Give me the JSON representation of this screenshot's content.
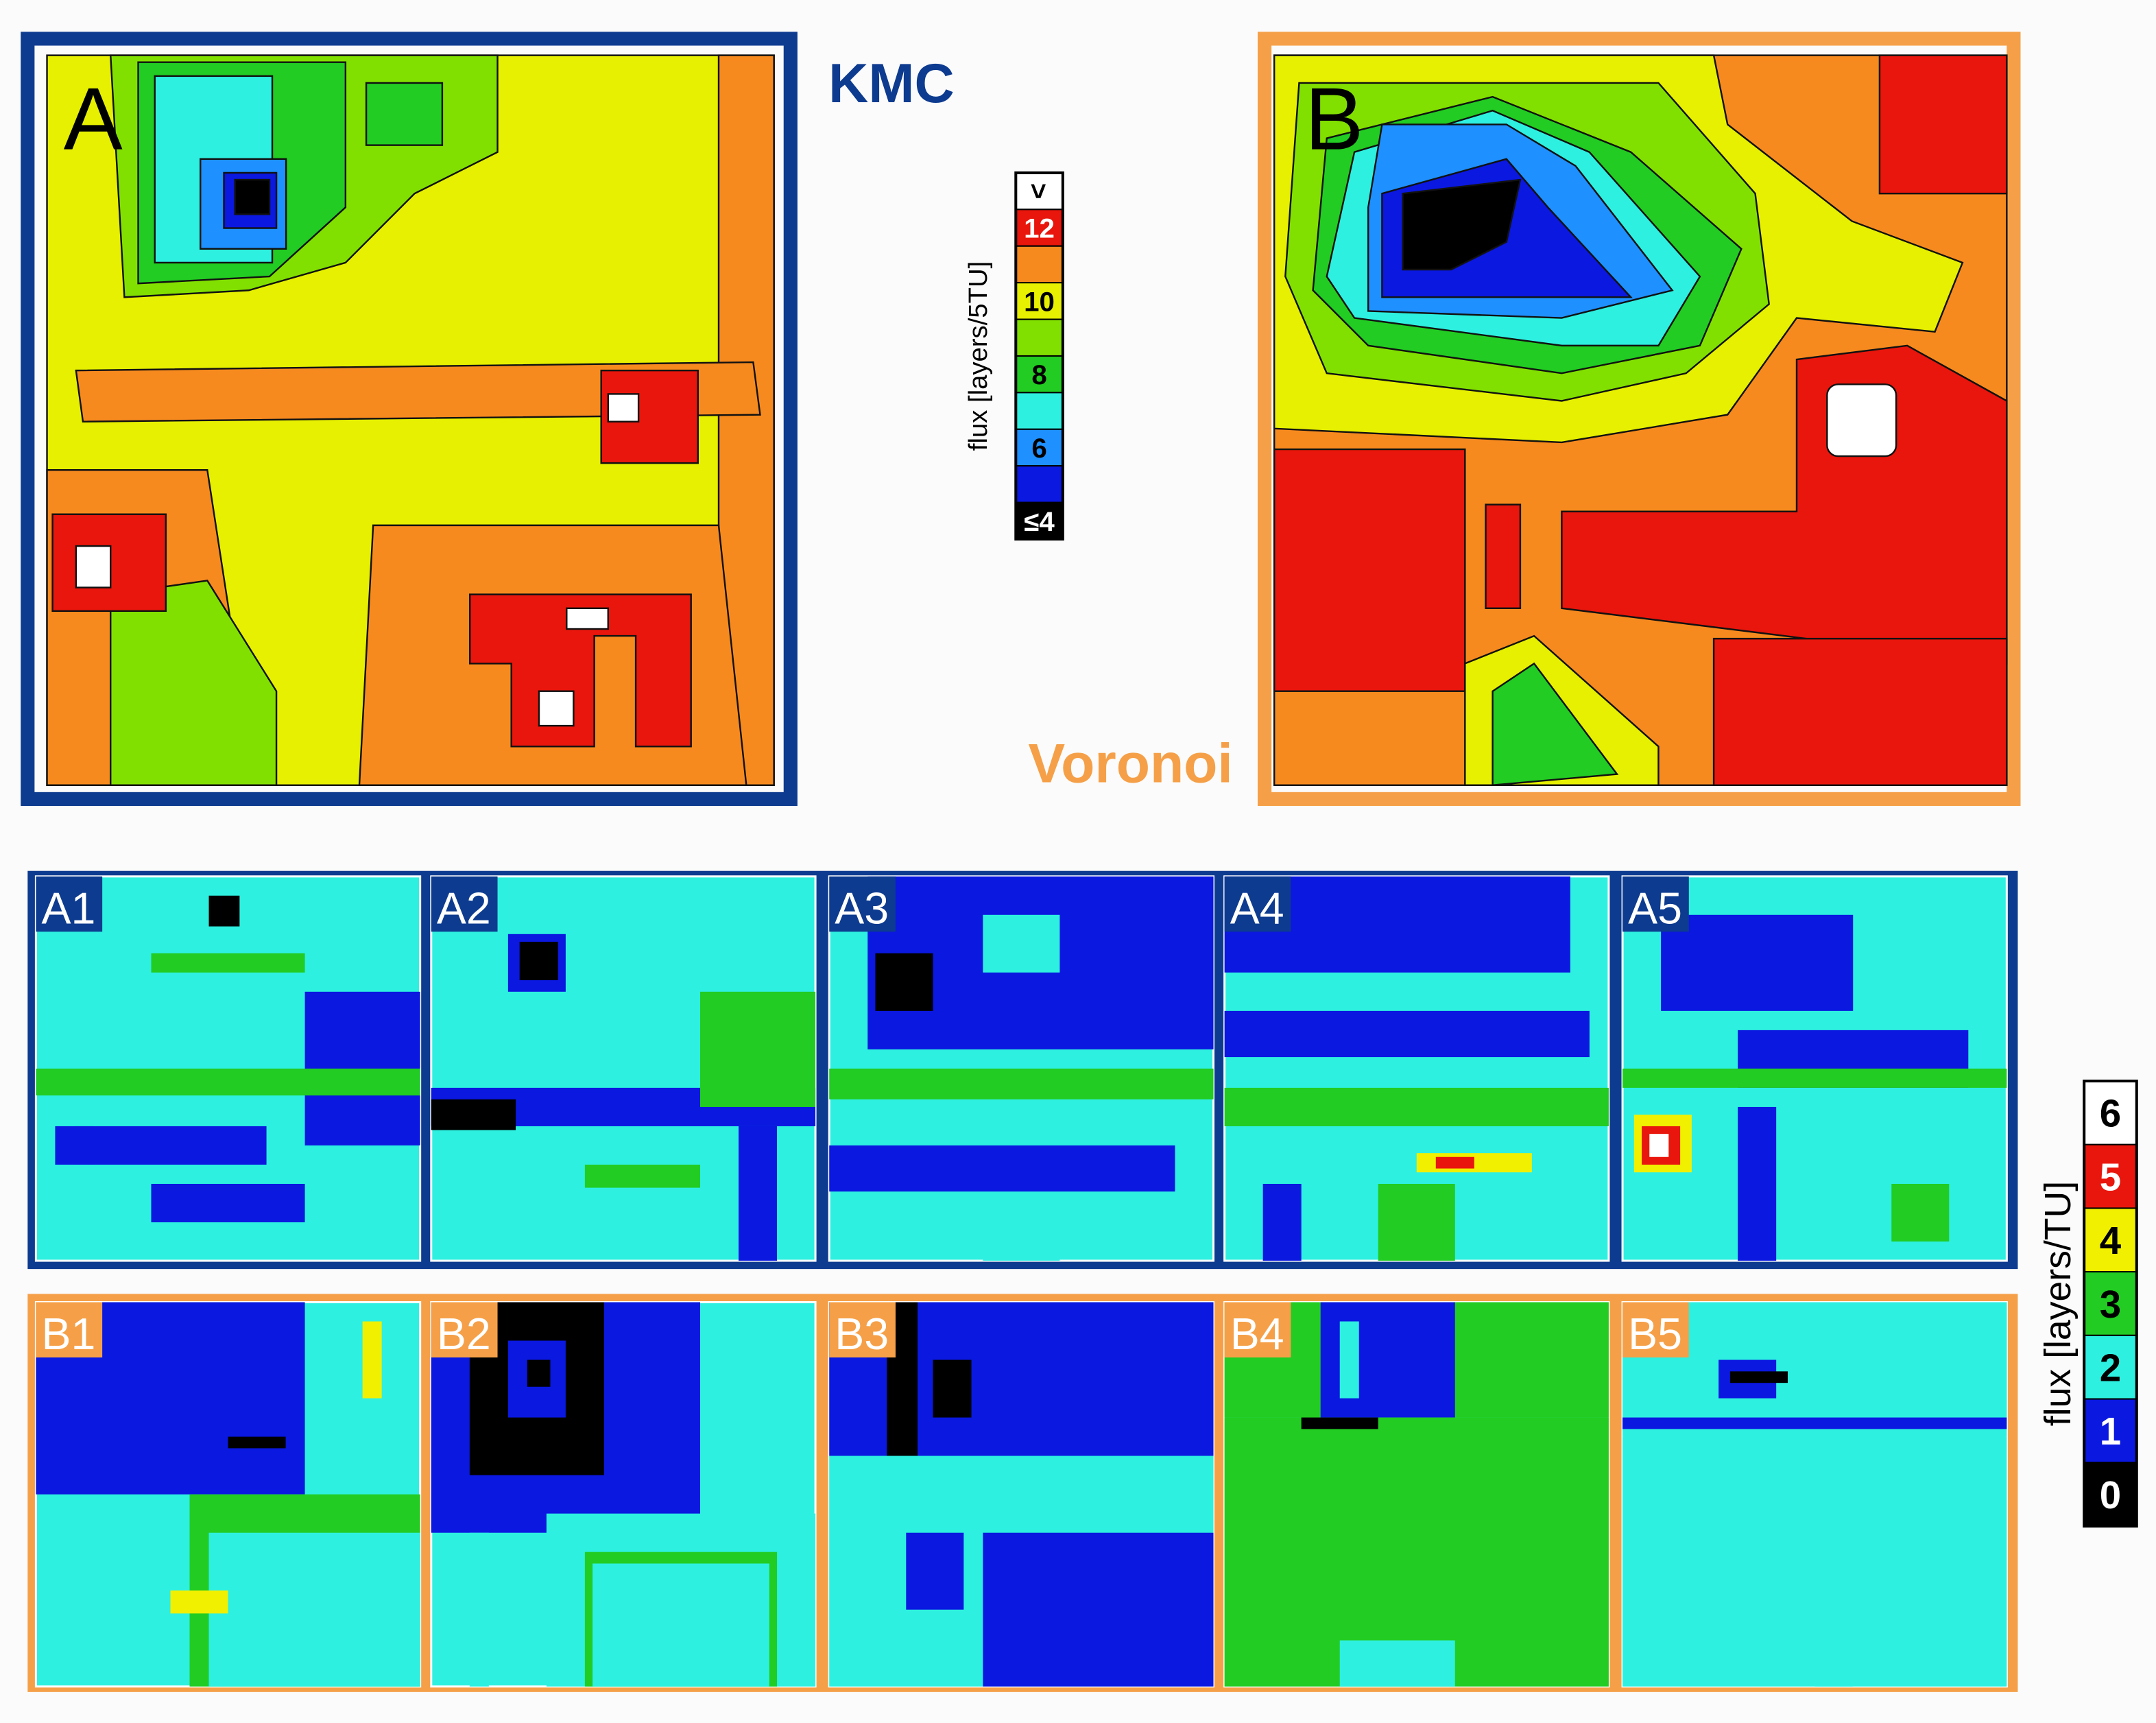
{
  "panels": {
    "A": {
      "label": "A",
      "method": "KMC"
    },
    "B": {
      "label": "B",
      "method": "Voronoi"
    }
  },
  "subpanels_a": [
    "A1",
    "A2",
    "A3",
    "A4",
    "A5"
  ],
  "subpanels_b": [
    "B1",
    "B2",
    "B3",
    "B4",
    "B5"
  ],
  "legend_5tu": {
    "title": "flux [layers/5TU]",
    "cells": [
      {
        "color": "#ffffff",
        "label": ">"
      },
      {
        "color": "#e8160c",
        "label": "12"
      },
      {
        "color": "#f78a1e"
      },
      {
        "color": "#e6f000",
        "label": "10"
      },
      {
        "color": "#82e000"
      },
      {
        "color": "#22cc22",
        "label": "8"
      },
      {
        "color": "#2ef0e0"
      },
      {
        "color": "#1e90ff",
        "label": "6"
      },
      {
        "color": "#0a18e0"
      },
      {
        "color": "#000000",
        "label": "≤4"
      }
    ]
  },
  "legend_tu": {
    "title": "flux [layers/TU]",
    "cells": [
      {
        "color": "#ffffff",
        "label": "6"
      },
      {
        "color": "#e8160c",
        "label": "5"
      },
      {
        "color": "#f0f000",
        "label": "4"
      },
      {
        "color": "#22cc22",
        "label": "3"
      },
      {
        "color": "#2ef0e0",
        "label": "2"
      },
      {
        "color": "#0a18e0",
        "label": "1"
      },
      {
        "color": "#000000",
        "label": "0"
      }
    ]
  }
}
